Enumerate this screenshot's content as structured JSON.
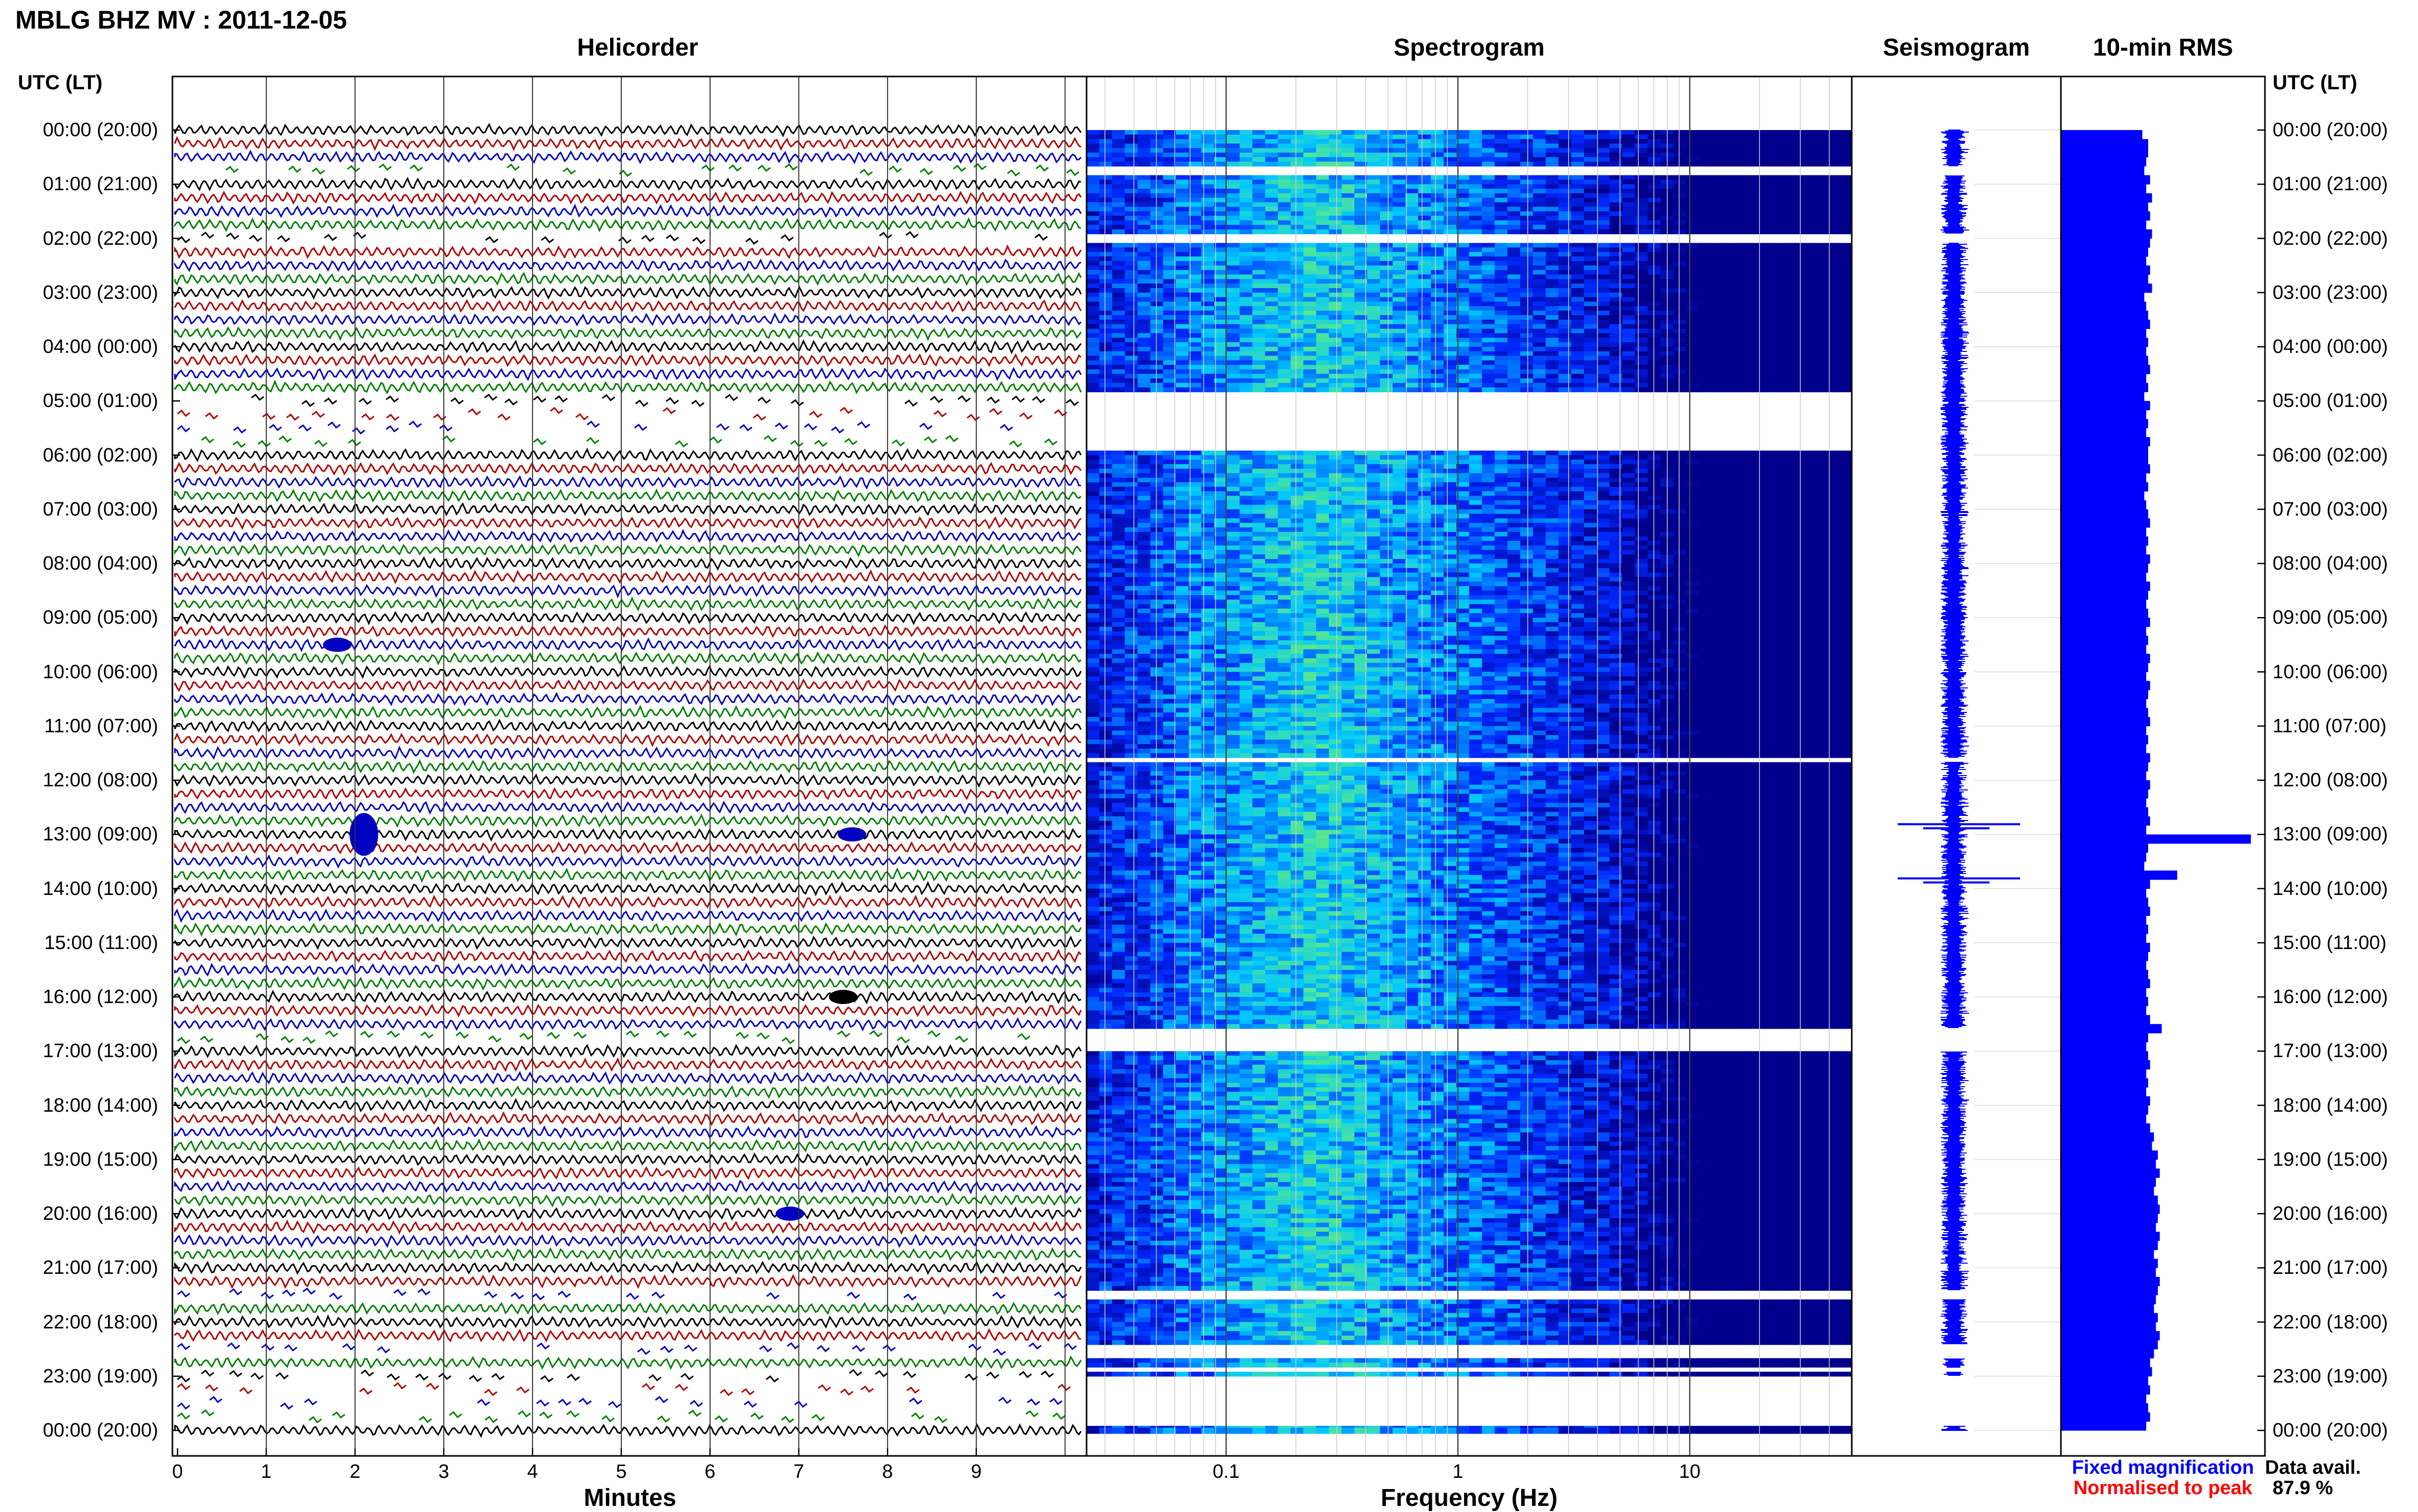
{
  "header": {
    "title": "MBLG BHZ MV : 2011-12-05",
    "utc_label": "UTC (LT)"
  },
  "panels": {
    "helicorder": "Helicorder",
    "spectrogram": "Spectrogram",
    "seismogram": "Seismogram",
    "rms": "10-min RMS"
  },
  "time_labels": [
    "00:00 (20:00)",
    "01:00 (21:00)",
    "02:00 (22:00)",
    "03:00 (23:00)",
    "04:00 (00:00)",
    "05:00 (01:00)",
    "06:00 (02:00)",
    "07:00 (03:00)",
    "08:00 (04:00)",
    "09:00 (05:00)",
    "10:00 (06:00)",
    "11:00 (07:00)",
    "12:00 (08:00)",
    "13:00 (09:00)",
    "14:00 (10:00)",
    "15:00 (11:00)",
    "16:00 (12:00)",
    "17:00 (13:00)",
    "18:00 (14:00)",
    "19:00 (15:00)",
    "20:00 (16:00)",
    "21:00 (17:00)",
    "22:00 (18:00)",
    "23:00 (19:00)",
    "00:00 (20:00)"
  ],
  "chart_data": [
    {
      "type": "line",
      "name": "helicorder",
      "title": "Helicorder",
      "xlabel": "Minutes",
      "x_ticks": [
        "0",
        "1",
        "2",
        "3",
        "4",
        "5",
        "6",
        "7",
        "8",
        "9"
      ],
      "xlim": [
        0,
        10
      ],
      "line_colors": [
        "#000000",
        "#b00000",
        "#0000c0",
        "#008000"
      ],
      "events": [
        {
          "time_utc": "09:30",
          "minute": 1.8
        },
        {
          "time_utc": "13:00",
          "minute": 2.1
        },
        {
          "time_utc": "13:00",
          "minute": 7.6
        },
        {
          "time_utc": "16:00",
          "minute": 7.5
        },
        {
          "time_utc": "20:00",
          "minute": 6.9
        }
      ]
    },
    {
      "type": "heatmap",
      "name": "spectrogram",
      "title": "Spectrogram",
      "xlabel": "Frequency (Hz)",
      "x_scale": "log",
      "x_ticks": [
        "0.1",
        "1",
        "10"
      ],
      "xlim": [
        0.025,
        50
      ],
      "gaps_utc": [
        [
          "00:40",
          "00:50"
        ],
        [
          "01:55",
          "02:05"
        ],
        [
          "04:50",
          "05:55"
        ],
        [
          "11:35",
          "11:40"
        ],
        [
          "16:35",
          "17:00"
        ],
        [
          "21:25",
          "21:35"
        ],
        [
          "22:25",
          "22:40"
        ],
        [
          "22:50",
          "22:55"
        ],
        [
          "23:00",
          "23:55"
        ]
      ]
    },
    {
      "type": "line",
      "name": "seismogram",
      "title": "Seismogram",
      "spikes_utc": [
        "13:00",
        "14:00"
      ]
    },
    {
      "type": "bar",
      "name": "rms",
      "title": "10-min RMS",
      "orientation": "horizontal",
      "color": "#0000ff",
      "relative_values": [
        0.42,
        0.45,
        0.45,
        0.44,
        0.43,
        0.46,
        0.44,
        0.47,
        0.45,
        0.46,
        0.44,
        0.47,
        0.46,
        0.45,
        0.44,
        0.46,
        0.45,
        0.47,
        0.43,
        0.44,
        0.45,
        0.46,
        0.44,
        0.45,
        0.44,
        0.45,
        0.46,
        0.44,
        0.45,
        0.43,
        0.46,
        0.44,
        0.45,
        0.44,
        0.46,
        0.45,
        0.45,
        0.46,
        0.44,
        0.45,
        0.43,
        0.44,
        0.45,
        0.46,
        0.44,
        0.45,
        0.44,
        0.46,
        0.45,
        0.44,
        0.46,
        0.45,
        0.44,
        0.45,
        0.46,
        0.44,
        0.45,
        0.44,
        0.46,
        0.45,
        0.44,
        0.46,
        0.45,
        0.44,
        0.45,
        0.46,
        0.44,
        0.45,
        0.44,
        0.46,
        0.45,
        0.44,
        0.46,
        0.45,
        0.44,
        0.45,
        0.46,
        0.44,
        0.98,
        0.45,
        0.44,
        0.43,
        0.6,
        0.46,
        0.44,
        0.45,
        0.46,
        0.44,
        0.45,
        0.44,
        0.46,
        0.45,
        0.44,
        0.45,
        0.46,
        0.44,
        0.45,
        0.44,
        0.46,
        0.52,
        0.45,
        0.44,
        0.45,
        0.46,
        0.44,
        0.45,
        0.44,
        0.46,
        0.45,
        0.44,
        0.46,
        0.48,
        0.47,
        0.5,
        0.49,
        0.51,
        0.49,
        0.48,
        0.5,
        0.51,
        0.5,
        0.49,
        0.51,
        0.5,
        0.48,
        0.5,
        0.49,
        0.51,
        0.5,
        0.49,
        0.48,
        0.5,
        0.49,
        0.51,
        0.5,
        0.48,
        0.46,
        0.47,
        0.45,
        0.46,
        0.44,
        0.45,
        0.46,
        0.44
      ]
    }
  ],
  "legend": {
    "fixed": "Fixed magnification",
    "fixed_color": "#0000ff",
    "normalised": "Normalised to peak",
    "normalised_color": "#ff0000"
  },
  "availability": {
    "label": "Data avail.",
    "value": "87.9 %"
  }
}
